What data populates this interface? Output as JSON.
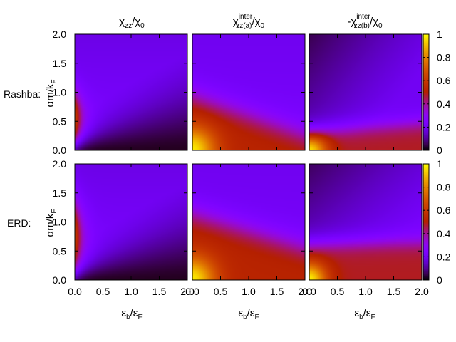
{
  "chart_data": {
    "type": "heatmap",
    "colormap": "gnuplot pm3d (black-purple-red-orange-yellow)",
    "colorbar": {
      "range": [
        0,
        1
      ],
      "ticks": [
        "0",
        "0.2",
        "0.4",
        "0.6",
        "0.8",
        "1"
      ]
    },
    "x_ticks": [
      "0.0",
      "0.5",
      "1.0",
      "1.5",
      "2.0"
    ],
    "y_ticks": [
      "0.0",
      "0.5",
      "1.0",
      "1.5",
      "2.0"
    ],
    "xlim": [
      0,
      2
    ],
    "ylim": [
      0,
      2
    ],
    "columns": [
      {
        "title": "χzz/χ0"
      },
      {
        "title": "χinterzz(a)/χ0"
      },
      {
        "title": "-χinterzz(b)/χ0"
      }
    ],
    "rows": [
      {
        "label": "Rashba:",
        "ylabel": "αm/kF"
      },
      {
        "label": "ERD:",
        "ylabel": "αm/kF"
      }
    ],
    "xlabel": "εb/εF",
    "panels": [
      {
        "row": 0,
        "col": 0,
        "description": "strong (~0.6) near eb=0 around am/kF=0.5, decreasing to ~0 at large eb & small am; ~0.2 elsewhere"
      },
      {
        "row": 0,
        "col": 1,
        "description": "~1 at origin, decreasing with am/kF; ~0.55 along bottom at large eb; ~0.2 at top"
      },
      {
        "row": 0,
        "col": 2,
        "description": "~1 at origin, ~0.5 band at am/kF~0.25, dark (~0.05) at top-left"
      },
      {
        "row": 1,
        "col": 0,
        "description": "similar to Rashba but broader strong region near eb=0"
      },
      {
        "row": 1,
        "col": 1,
        "description": "~1 at origin, broad ~0.55 region below am/kF~1"
      },
      {
        "row": 1,
        "col": 2,
        "description": "~1 at origin, ~0.5 band below am/kF~0.7, dark top-left"
      }
    ]
  }
}
